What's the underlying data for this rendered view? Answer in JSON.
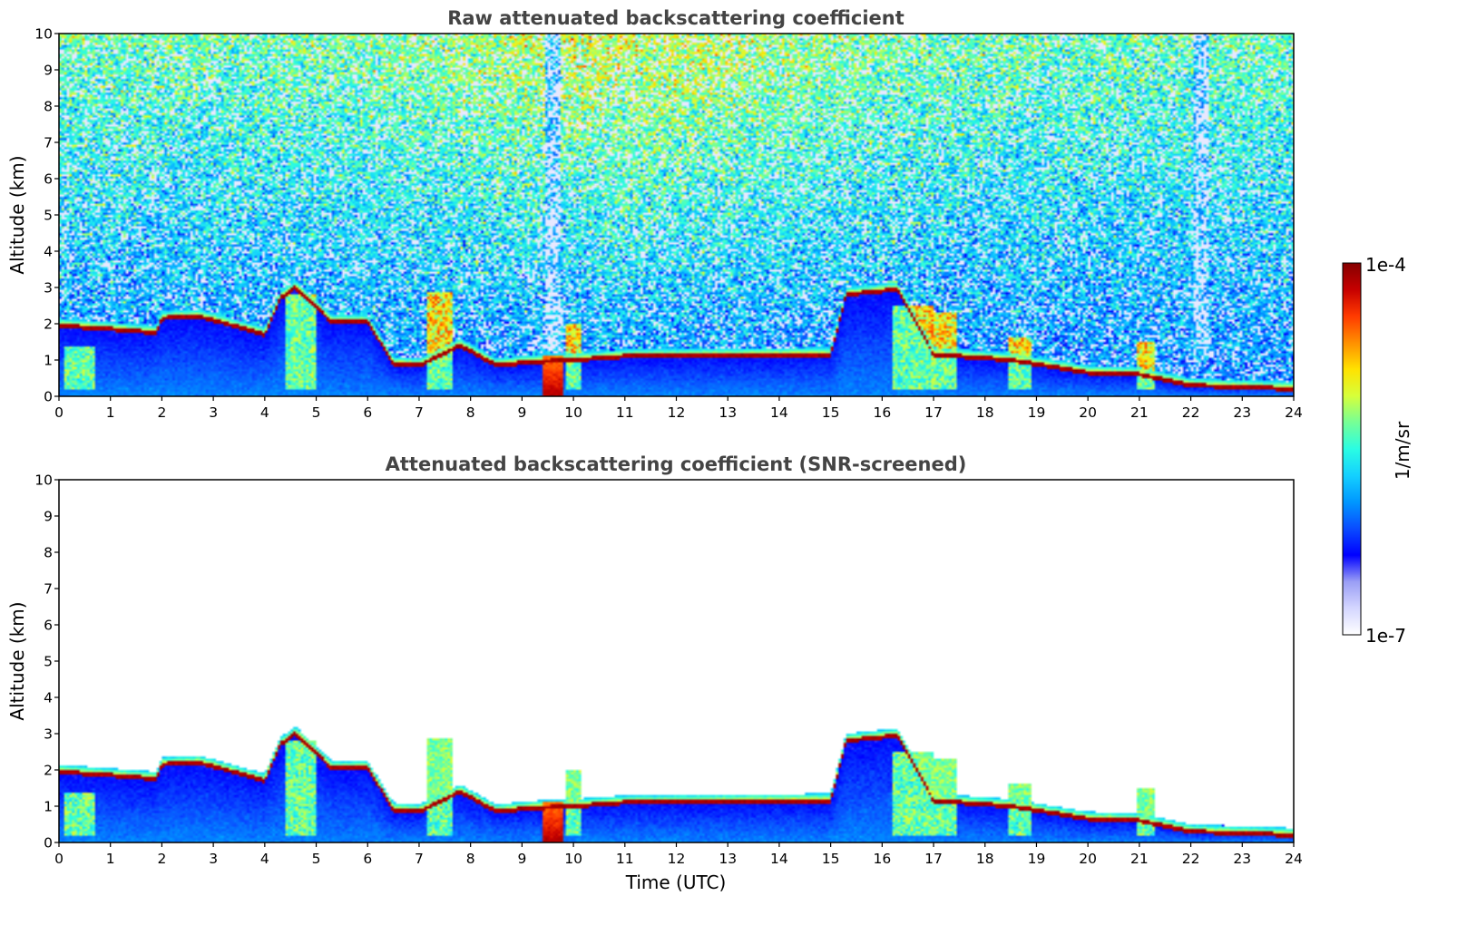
{
  "colors": {
    "colormap": [
      "#ffffff",
      "#d4d6ff",
      "#9a9ef5",
      "#0000ff",
      "#0a4cff",
      "#0097ff",
      "#14d0ff",
      "#2afde3",
      "#76ff96",
      "#d7ff3a",
      "#ffe200",
      "#ff8f00",
      "#ff3a00",
      "#c60000",
      "#850000"
    ],
    "frame": "#000000",
    "title": "#444444"
  },
  "chart_data": [
    {
      "type": "heatmap",
      "title": "Raw attenuated backscattering coefficient",
      "xlabel": "",
      "ylabel": "Altitude (km)",
      "xlim": [
        0,
        24
      ],
      "ylim": [
        0,
        10
      ],
      "xticks": [
        "0",
        "1",
        "2",
        "3",
        "4",
        "5",
        "6",
        "7",
        "8",
        "9",
        "10",
        "11",
        "12",
        "13",
        "14",
        "15",
        "16",
        "17",
        "18",
        "19",
        "20",
        "21",
        "22",
        "23",
        "24"
      ],
      "yticks": [
        "0",
        "1",
        "2",
        "3",
        "4",
        "5",
        "6",
        "7",
        "8",
        "9",
        "10"
      ],
      "cloud_base_layer_km": [
        [
          0,
          1.95
        ],
        [
          1,
          1.85
        ],
        [
          1.9,
          1.75
        ],
        [
          2.0,
          2.15
        ],
        [
          2.7,
          2.2
        ],
        [
          3.0,
          2.1
        ],
        [
          4.0,
          1.7
        ],
        [
          4.3,
          2.7
        ],
        [
          4.6,
          3.0
        ],
        [
          5.3,
          2.05
        ],
        [
          6.0,
          2.05
        ],
        [
          6.5,
          0.9
        ],
        [
          7.0,
          0.85
        ],
        [
          7.8,
          1.4
        ],
        [
          8.5,
          0.85
        ],
        [
          9.2,
          0.95
        ],
        [
          10,
          1.0
        ],
        [
          11,
          1.1
        ],
        [
          15,
          1.15
        ],
        [
          15.3,
          2.8
        ],
        [
          16.3,
          2.95
        ],
        [
          17.0,
          1.15
        ],
        [
          18.5,
          1.0
        ],
        [
          20,
          0.65
        ],
        [
          21,
          0.6
        ],
        [
          22,
          0.3
        ],
        [
          23,
          0.25
        ],
        [
          24,
          0.2
        ]
      ],
      "precipitation_columns_utc": [
        9.6,
        22.2
      ]
    },
    {
      "type": "heatmap",
      "title": "Attenuated backscattering coefficient (SNR-screened)",
      "xlabel": "Time (UTC)",
      "ylabel": "Altitude (km)",
      "xlim": [
        0,
        24
      ],
      "ylim": [
        0,
        10
      ],
      "xticks": [
        "0",
        "1",
        "2",
        "3",
        "4",
        "5",
        "6",
        "7",
        "8",
        "9",
        "10",
        "11",
        "12",
        "13",
        "14",
        "15",
        "16",
        "17",
        "18",
        "19",
        "20",
        "21",
        "22",
        "23",
        "24"
      ],
      "yticks": [
        "0",
        "1",
        "2",
        "3",
        "4",
        "5",
        "6",
        "7",
        "8",
        "9",
        "10"
      ]
    }
  ],
  "colorbar": {
    "label": "1/m/sr",
    "max_label": "1e-4",
    "min_label": "1e-7",
    "range": [
      1e-07,
      0.0001
    ],
    "scale": "log"
  }
}
